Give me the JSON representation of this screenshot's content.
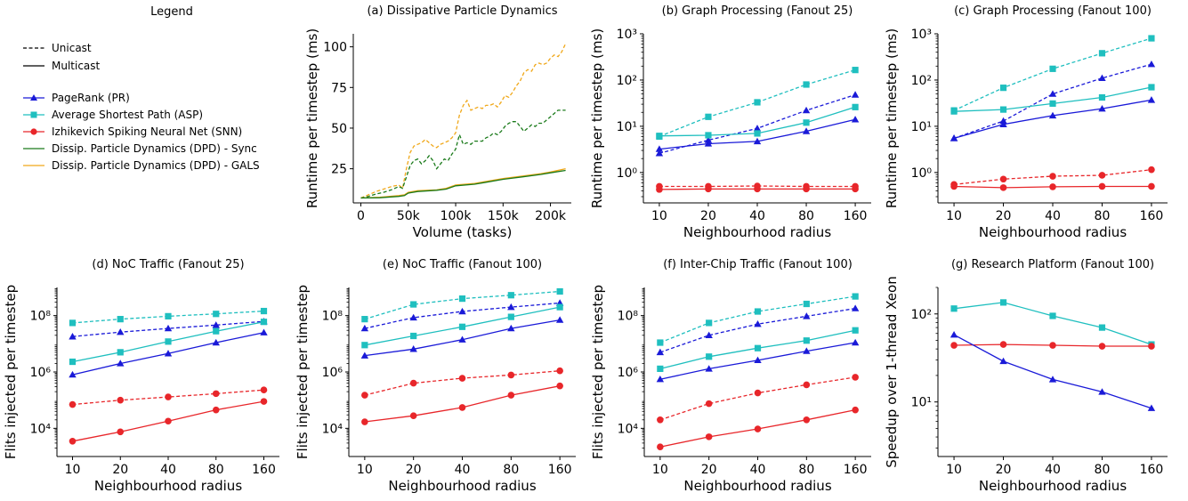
{
  "legend": {
    "title": "Legend",
    "styles": [
      {
        "label": "Unicast",
        "dash": true
      },
      {
        "label": "Multicast",
        "dash": false
      }
    ],
    "series": [
      {
        "label": "PageRank (PR)",
        "color": "#1a1ad8",
        "marker": "triangle"
      },
      {
        "label": "Average Shortest Path (ASP)",
        "color": "#1fbfbf",
        "marker": "square"
      },
      {
        "label": "Izhikevich Spiking Neural Net (SNN)",
        "color": "#e8262a",
        "marker": "circle"
      },
      {
        "label": "Dissip. Particle Dynamics (DPD) - Sync",
        "color": "#1a7a1a",
        "marker": "none"
      },
      {
        "label": "Dissip. Particle Dynamics (DPD) - GALS",
        "color": "#f0a81a",
        "marker": "none"
      }
    ]
  },
  "chart_data": [
    {
      "id": "a",
      "type": "line",
      "title": "(a) Dissipative Particle Dynamics",
      "xlabel": "Volume (tasks)",
      "ylabel": "Runtime per timestep (ms)",
      "xscale": "linear",
      "yscale": "linear",
      "xlim": [
        -8000,
        222000
      ],
      "ylim": [
        4,
        108
      ],
      "xticks": [
        0,
        50000,
        100000,
        150000,
        200000
      ],
      "xticklabels": [
        "0",
        "50k",
        "100k",
        "150k",
        "200k"
      ],
      "yticks": [
        25,
        50,
        75,
        100
      ],
      "yticklabels": [
        "25",
        "50",
        "75",
        "100"
      ],
      "series": [
        {
          "key": "dpd-gals",
          "dash": true,
          "x": [
            0,
            8000,
            16000,
            24000,
            32000,
            40000,
            44000,
            48000,
            52000,
            56000,
            60000,
            64000,
            68000,
            72000,
            76000,
            80000,
            84000,
            88000,
            92000,
            96000,
            100000,
            104000,
            108000,
            112000,
            116000,
            120000,
            124000,
            128000,
            132000,
            136000,
            140000,
            144000,
            148000,
            152000,
            156000,
            160000,
            164000,
            168000,
            172000,
            176000,
            180000,
            184000,
            188000,
            192000,
            196000,
            200000,
            204000,
            208000,
            212000,
            216000
          ],
          "y": [
            7,
            9,
            11,
            12.5,
            14,
            15,
            13,
            25,
            35,
            39,
            40,
            41,
            43,
            41,
            39,
            38,
            40,
            41,
            42,
            44,
            47,
            58,
            64,
            67,
            61,
            62,
            63,
            62,
            64,
            64,
            65,
            63,
            66,
            70,
            69,
            72,
            76,
            79,
            84,
            86,
            85,
            89,
            90,
            89,
            90,
            93,
            95,
            94,
            97,
            102
          ]
        },
        {
          "key": "dpd-sync",
          "dash": true,
          "x": [
            0,
            8000,
            16000,
            24000,
            32000,
            40000,
            44000,
            48000,
            52000,
            56000,
            60000,
            64000,
            68000,
            72000,
            76000,
            80000,
            84000,
            88000,
            92000,
            96000,
            100000,
            104000,
            108000,
            112000,
            116000,
            120000,
            124000,
            128000,
            132000,
            136000,
            140000,
            144000,
            148000,
            152000,
            156000,
            160000,
            164000,
            168000,
            172000,
            176000,
            180000,
            184000,
            188000,
            192000,
            196000,
            200000,
            204000,
            208000,
            212000,
            216000
          ],
          "y": [
            7,
            8,
            9.5,
            10.5,
            12,
            14,
            13,
            20,
            27,
            30,
            31,
            28,
            30,
            33,
            30,
            25,
            28,
            31,
            30,
            34,
            37,
            46,
            40,
            41,
            40,
            42,
            42,
            42,
            44,
            45,
            47,
            46,
            48,
            51,
            53,
            54,
            54,
            51,
            48,
            50,
            52,
            51,
            53,
            53,
            55,
            57,
            59,
            61,
            61,
            61
          ]
        },
        {
          "key": "dpd-gals",
          "dash": false,
          "x": [
            0,
            20000,
            40000,
            46000,
            50000,
            60000,
            80000,
            90000,
            100000,
            120000,
            130000,
            150000,
            170000,
            190000,
            200000,
            216000
          ],
          "y": [
            7,
            7.5,
            8.5,
            9,
            10.5,
            11.5,
            12,
            13,
            15,
            16,
            17,
            19,
            20.5,
            22,
            23,
            25
          ]
        },
        {
          "key": "dpd-sync",
          "dash": false,
          "x": [
            0,
            20000,
            40000,
            46000,
            50000,
            60000,
            80000,
            90000,
            100000,
            120000,
            130000,
            150000,
            170000,
            190000,
            200000,
            216000
          ],
          "y": [
            7,
            7.2,
            8,
            8.5,
            10,
            11,
            11.8,
            12.5,
            14.5,
            15.5,
            16.5,
            18.5,
            20,
            21.5,
            22.5,
            24
          ]
        }
      ]
    },
    {
      "id": "b",
      "type": "line",
      "title": "(b) Graph Processing (Fanout 25)",
      "xlabel": "Neighbourhood radius",
      "ylabel": "Runtime per timestep (ms)",
      "xscale": "category",
      "yscale": "log",
      "categories": [
        "10",
        "20",
        "40",
        "80",
        "160"
      ],
      "ylim": [
        0.22,
        1000
      ],
      "yticks": [
        1,
        10,
        100,
        1000
      ],
      "yticklabels": [
        "10⁰",
        "10¹",
        "10²",
        "10³"
      ],
      "series": [
        {
          "key": "pr",
          "dash": true,
          "values": [
            2.6,
            5,
            9,
            22,
            48
          ]
        },
        {
          "key": "asp",
          "dash": true,
          "values": [
            6,
            16,
            33,
            80,
            165
          ]
        },
        {
          "key": "snn",
          "dash": true,
          "values": [
            0.5,
            0.5,
            0.51,
            0.5,
            0.5
          ]
        },
        {
          "key": "pr",
          "dash": false,
          "values": [
            3.2,
            4.2,
            4.7,
            7.8,
            14
          ]
        },
        {
          "key": "asp",
          "dash": false,
          "values": [
            6.2,
            6.4,
            7,
            12,
            26
          ]
        },
        {
          "key": "snn",
          "dash": false,
          "values": [
            0.43,
            0.44,
            0.44,
            0.44,
            0.44
          ]
        }
      ]
    },
    {
      "id": "c",
      "type": "line",
      "title": "(c) Graph Processing (Fanout 100)",
      "xlabel": "Neighbourhood radius",
      "ylabel": "Runtime per timestep (ms)",
      "xscale": "category",
      "yscale": "log",
      "categories": [
        "10",
        "20",
        "40",
        "80",
        "160"
      ],
      "ylim": [
        0.22,
        1000
      ],
      "yticks": [
        1,
        10,
        100,
        1000
      ],
      "yticklabels": [
        "10⁰",
        "10¹",
        "10²",
        "10³"
      ],
      "series": [
        {
          "key": "pr",
          "dash": true,
          "values": [
            5.5,
            13,
            50,
            110,
            220
          ]
        },
        {
          "key": "asp",
          "dash": true,
          "values": [
            22,
            68,
            175,
            380,
            800
          ]
        },
        {
          "key": "snn",
          "dash": true,
          "values": [
            0.55,
            0.72,
            0.83,
            0.87,
            1.15
          ]
        },
        {
          "key": "pr",
          "dash": false,
          "values": [
            5.5,
            11,
            17,
            24,
            37
          ]
        },
        {
          "key": "asp",
          "dash": false,
          "values": [
            21,
            23,
            31,
            42,
            70
          ]
        },
        {
          "key": "snn",
          "dash": false,
          "values": [
            0.5,
            0.47,
            0.49,
            0.5,
            0.5
          ]
        }
      ]
    },
    {
      "id": "d",
      "type": "line",
      "title": "(d) NoC Traffic (Fanout 25)",
      "xlabel": "Neighbourhood radius",
      "ylabel": "Flits injected per timestep",
      "xscale": "category",
      "yscale": "log",
      "categories": [
        "10",
        "20",
        "40",
        "80",
        "160"
      ],
      "ylim": [
        1000,
        1000000000
      ],
      "yticks": [
        10000,
        1000000,
        100000000
      ],
      "yticklabels": [
        "10⁴",
        "10⁶",
        "10⁸"
      ],
      "series": [
        {
          "key": "pr",
          "dash": true,
          "values": [
            18000000,
            26000000,
            35000000,
            46000000,
            62000000
          ]
        },
        {
          "key": "asp",
          "dash": true,
          "values": [
            55000000,
            75000000,
            95000000,
            115000000,
            145000000
          ]
        },
        {
          "key": "snn",
          "dash": true,
          "values": [
            70000,
            100000,
            130000,
            170000,
            230000
          ]
        },
        {
          "key": "pr",
          "dash": false,
          "values": [
            800000,
            2000000,
            4500000,
            11000000,
            25000000
          ]
        },
        {
          "key": "asp",
          "dash": false,
          "values": [
            2300000,
            5000000,
            12000000,
            28000000,
            60000000
          ]
        },
        {
          "key": "snn",
          "dash": false,
          "values": [
            3500,
            7500,
            18000,
            45000,
            90000
          ]
        }
      ]
    },
    {
      "id": "e",
      "type": "line",
      "title": "(e) NoC Traffic (Fanout 100)",
      "xlabel": "Neighbourhood radius",
      "ylabel": "Flits injected per timestep",
      "xscale": "category",
      "yscale": "log",
      "categories": [
        "10",
        "20",
        "40",
        "80",
        "160"
      ],
      "ylim": [
        1000,
        1000000000
      ],
      "yticks": [
        10000,
        1000000,
        100000000
      ],
      "yticklabels": [
        "10⁴",
        "10⁶",
        "10⁸"
      ],
      "series": [
        {
          "key": "pr",
          "dash": true,
          "values": [
            35000000,
            85000000,
            140000000,
            200000000,
            280000000
          ]
        },
        {
          "key": "asp",
          "dash": true,
          "values": [
            75000000,
            250000000,
            400000000,
            530000000,
            720000000
          ]
        },
        {
          "key": "snn",
          "dash": true,
          "values": [
            150000,
            400000,
            600000,
            780000,
            1100000
          ]
        },
        {
          "key": "pr",
          "dash": false,
          "values": [
            3800000,
            6500000,
            14000000,
            35000000,
            70000000
          ]
        },
        {
          "key": "asp",
          "dash": false,
          "values": [
            9000000,
            19000000,
            40000000,
            90000000,
            200000000
          ]
        },
        {
          "key": "snn",
          "dash": false,
          "values": [
            17000,
            28000,
            55000,
            150000,
            320000
          ]
        }
      ]
    },
    {
      "id": "f",
      "type": "line",
      "title": "(f) Inter-Chip Traffic (Fanout 100)",
      "xlabel": "Neighbourhood radius",
      "ylabel": "Flits injected per timestep",
      "xscale": "category",
      "yscale": "log",
      "categories": [
        "10",
        "20",
        "40",
        "80",
        "160"
      ],
      "ylim": [
        1000,
        1000000000
      ],
      "yticks": [
        10000,
        1000000,
        100000000
      ],
      "yticklabels": [
        "10⁴",
        "10⁶",
        "10⁸"
      ],
      "series": [
        {
          "key": "pr",
          "dash": true,
          "values": [
            5000000,
            20000000,
            50000000,
            95000000,
            180000000
          ]
        },
        {
          "key": "asp",
          "dash": true,
          "values": [
            11000000,
            55000000,
            140000000,
            260000000,
            480000000
          ]
        },
        {
          "key": "snn",
          "dash": true,
          "values": [
            20000,
            75000,
            180000,
            350000,
            650000
          ]
        },
        {
          "key": "pr",
          "dash": false,
          "values": [
            550000,
            1300000,
            2600000,
            5500000,
            11000000
          ]
        },
        {
          "key": "asp",
          "dash": false,
          "values": [
            1300000,
            3500000,
            7000000,
            13000000,
            30000000
          ]
        },
        {
          "key": "snn",
          "dash": false,
          "values": [
            2200,
            5000,
            9500,
            20000,
            45000
          ]
        }
      ]
    },
    {
      "id": "g",
      "type": "line",
      "title": "(g) Research Platform (Fanout 100)",
      "xlabel": "Neighbourhood radius",
      "ylabel": "Speedup over 1-thread Xeon",
      "xscale": "category",
      "yscale": "log",
      "categories": [
        "10",
        "20",
        "40",
        "80",
        "160"
      ],
      "ylim": [
        2.4,
        200
      ],
      "yticks": [
        10,
        100
      ],
      "yticklabels": [
        "10¹",
        "10²"
      ],
      "series": [
        {
          "key": "asp",
          "dash": false,
          "values": [
            115,
            135,
            95,
            70,
            45
          ]
        },
        {
          "key": "snn",
          "dash": false,
          "values": [
            44,
            45,
            44,
            43,
            43
          ]
        },
        {
          "key": "pr",
          "dash": false,
          "values": [
            58,
            29,
            18,
            13,
            8.5
          ]
        }
      ]
    }
  ]
}
